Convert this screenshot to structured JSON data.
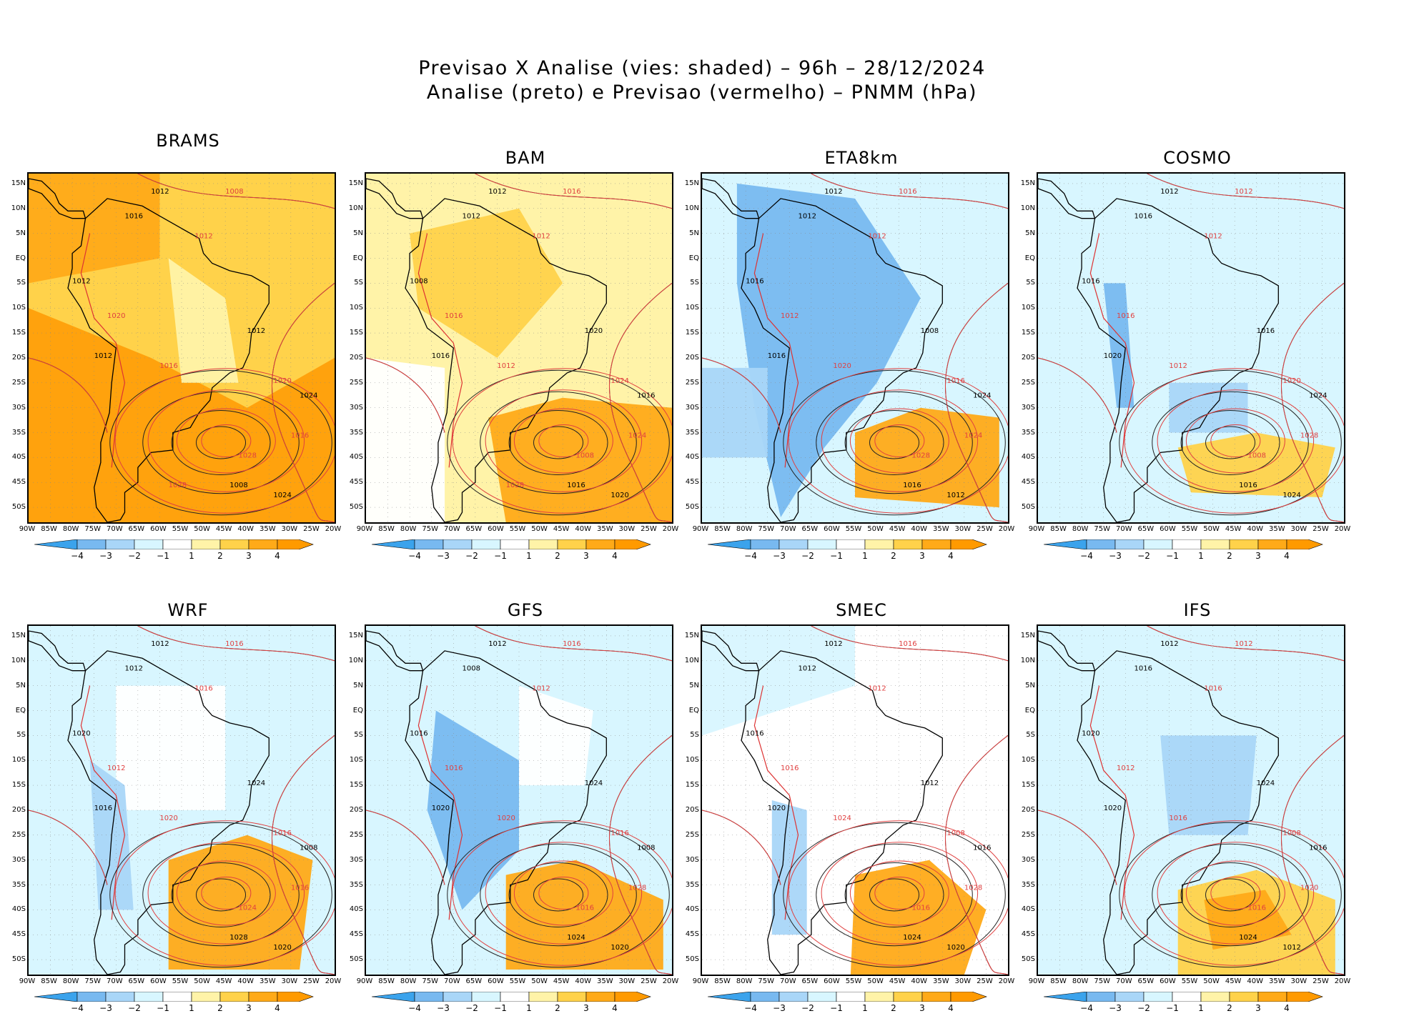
{
  "title": {
    "line1": "Previsao X Analise (vies: shaded) – 96h – 28/12/2024",
    "line2": "Analise (preto) e Previsao (vermelho) – PNMM (hPa)"
  },
  "lat_labels": [
    "15N",
    "10N",
    "5N",
    "EQ",
    "5S",
    "10S",
    "15S",
    "20S",
    "25S",
    "30S",
    "35S",
    "40S",
    "45S",
    "50S"
  ],
  "lon_labels": [
    "90W",
    "85W",
    "80W",
    "75W",
    "70W",
    "65W",
    "60W",
    "55W",
    "50W",
    "45W",
    "40W",
    "35W",
    "30W",
    "25W",
    "20W"
  ],
  "colorbar": {
    "labels": [
      "−4",
      "−3",
      "−2",
      "−1",
      "1",
      "2",
      "3",
      "4"
    ],
    "colors": [
      "#3ba3ec",
      "#78b9f0",
      "#a9d6f8",
      "#d8f6ff",
      "#ffffff",
      "#fff3a8",
      "#ffd24a",
      "#ffaa18",
      "#ff9a00"
    ]
  },
  "panels": [
    {
      "name": "BRAMS",
      "bias": "warm-strong",
      "contours": [
        "1012",
        "1008",
        "1016",
        "1012",
        "1012",
        "1020",
        "1012",
        "1016",
        "1012",
        "1020",
        "1024",
        "1028",
        "1008",
        "1016",
        "1024",
        "1028"
      ]
    },
    {
      "name": "BAM",
      "bias": "warm",
      "contours": [
        "1012",
        "1016",
        "1012",
        "1012",
        "1008",
        "1016",
        "1016",
        "1012",
        "1020",
        "1024",
        "1016",
        "1008",
        "1016",
        "1024",
        "1020",
        "1028"
      ]
    },
    {
      "name": "ETA8km",
      "bias": "cold",
      "contours": [
        "1012",
        "1016",
        "1012",
        "1012",
        "1016",
        "1012",
        "1016",
        "1020",
        "1008",
        "1016",
        "1024",
        "1028",
        "1016",
        "1024",
        "1012"
      ]
    },
    {
      "name": "COSMO",
      "bias": "cool",
      "contours": [
        "1012",
        "1012",
        "1016",
        "1012",
        "1016",
        "1016",
        "1020",
        "1012",
        "1016",
        "1020",
        "1024",
        "1008",
        "1016",
        "1028",
        "1024"
      ]
    },
    {
      "name": "WRF",
      "bias": "mixed",
      "contours": [
        "1012",
        "1016",
        "1012",
        "1016",
        "1020",
        "1012",
        "1016",
        "1020",
        "1024",
        "1016",
        "1008",
        "1024",
        "1028",
        "1016",
        "1020"
      ]
    },
    {
      "name": "GFS",
      "bias": "mixed-cool",
      "contours": [
        "1012",
        "1016",
        "1008",
        "1012",
        "1016",
        "1016",
        "1020",
        "1020",
        "1024",
        "1016",
        "1008",
        "1016",
        "1024",
        "1028",
        "1020"
      ]
    },
    {
      "name": "SMEC",
      "bias": "near-zero",
      "contours": [
        "1012",
        "1016",
        "1012",
        "1012",
        "1016",
        "1016",
        "1020",
        "1024",
        "1012",
        "1008",
        "1016",
        "1016",
        "1024",
        "1028",
        "1020"
      ]
    },
    {
      "name": "IFS",
      "bias": "cool-light",
      "contours": [
        "1012",
        "1012",
        "1016",
        "1016",
        "1020",
        "1012",
        "1020",
        "1016",
        "1024",
        "1008",
        "1016",
        "1016",
        "1024",
        "1020",
        "1012"
      ]
    }
  ]
}
